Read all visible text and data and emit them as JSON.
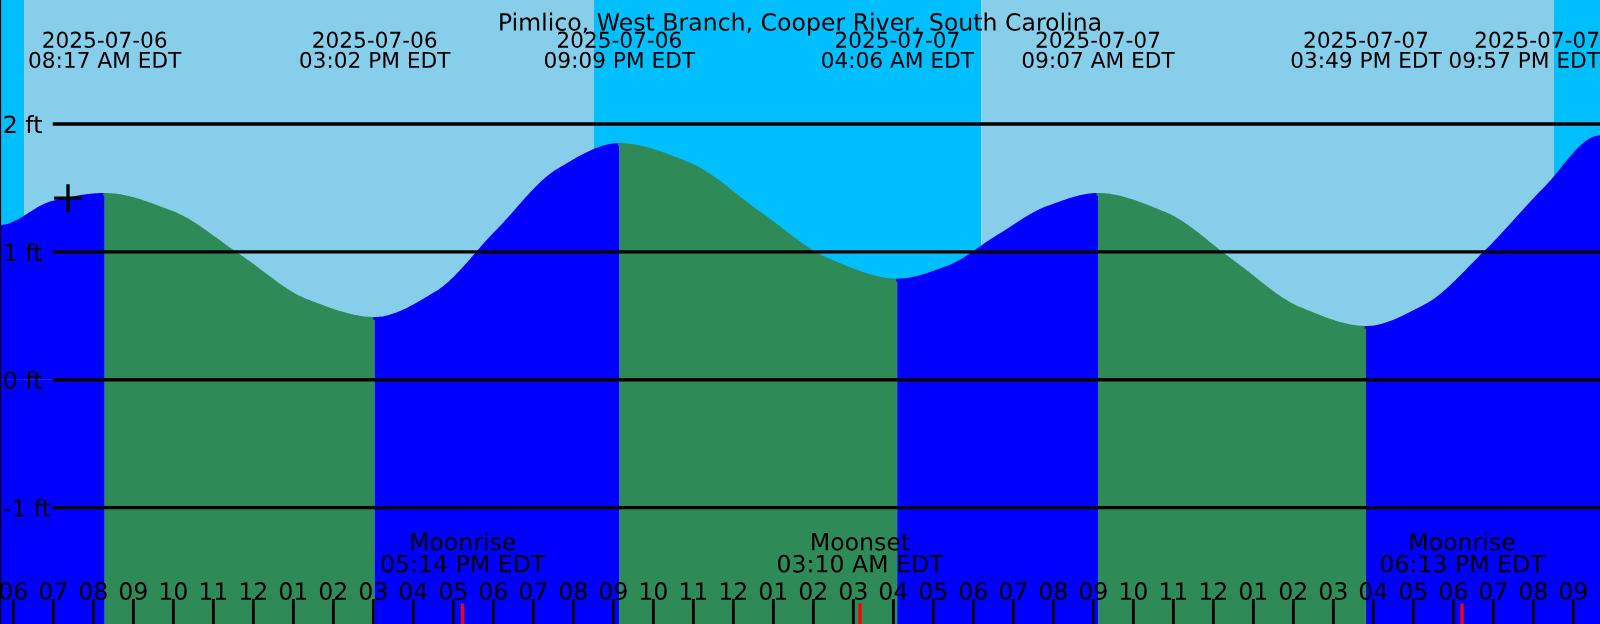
{
  "chart_data": {
    "type": "area",
    "title": "Pimlico, West Branch, Cooper River, South Carolina",
    "xlim": [
      "2025-07-06T05:40",
      "2025-07-07T21:40"
    ],
    "ylim": [
      -1.91,
      2.97
    ],
    "yticks": [
      {
        "value": -1,
        "label": "-1 ft"
      },
      {
        "value": 0,
        "label": "0 ft"
      },
      {
        "value": 1,
        "label": "1 ft"
      },
      {
        "value": 2,
        "label": "2 ft"
      }
    ],
    "xticks": [
      {
        "value": "2025-07-06T06:00",
        "label": "06"
      },
      {
        "value": "2025-07-06T07:00",
        "label": "07"
      },
      {
        "value": "2025-07-06T08:00",
        "label": "08"
      },
      {
        "value": "2025-07-06T09:00",
        "label": "09"
      },
      {
        "value": "2025-07-06T10:00",
        "label": "10"
      },
      {
        "value": "2025-07-06T11:00",
        "label": "11"
      },
      {
        "value": "2025-07-06T12:00",
        "label": "12"
      },
      {
        "value": "2025-07-06T13:00",
        "label": "01"
      },
      {
        "value": "2025-07-06T14:00",
        "label": "02"
      },
      {
        "value": "2025-07-06T15:00",
        "label": "03"
      },
      {
        "value": "2025-07-06T16:00",
        "label": "04"
      },
      {
        "value": "2025-07-06T17:00",
        "label": "05"
      },
      {
        "value": "2025-07-06T18:00",
        "label": "06"
      },
      {
        "value": "2025-07-06T19:00",
        "label": "07"
      },
      {
        "value": "2025-07-06T20:00",
        "label": "08"
      },
      {
        "value": "2025-07-06T21:00",
        "label": "09"
      },
      {
        "value": "2025-07-06T22:00",
        "label": "10"
      },
      {
        "value": "2025-07-06T23:00",
        "label": "11"
      },
      {
        "value": "2025-07-07T00:00",
        "label": "12"
      },
      {
        "value": "2025-07-07T01:00",
        "label": "01"
      },
      {
        "value": "2025-07-07T02:00",
        "label": "02"
      },
      {
        "value": "2025-07-07T03:00",
        "label": "03"
      },
      {
        "value": "2025-07-07T04:00",
        "label": "04"
      },
      {
        "value": "2025-07-07T05:00",
        "label": "05"
      },
      {
        "value": "2025-07-07T06:00",
        "label": "06"
      },
      {
        "value": "2025-07-07T07:00",
        "label": "07"
      },
      {
        "value": "2025-07-07T08:00",
        "label": "08"
      },
      {
        "value": "2025-07-07T09:00",
        "label": "09"
      },
      {
        "value": "2025-07-07T10:00",
        "label": "10"
      },
      {
        "value": "2025-07-07T11:00",
        "label": "11"
      },
      {
        "value": "2025-07-07T12:00",
        "label": "12"
      },
      {
        "value": "2025-07-07T13:00",
        "label": "01"
      },
      {
        "value": "2025-07-07T14:00",
        "label": "02"
      },
      {
        "value": "2025-07-07T15:00",
        "label": "03"
      },
      {
        "value": "2025-07-07T16:00",
        "label": "04"
      },
      {
        "value": "2025-07-07T17:00",
        "label": "05"
      },
      {
        "value": "2025-07-07T18:00",
        "label": "06"
      },
      {
        "value": "2025-07-07T19:00",
        "label": "07"
      },
      {
        "value": "2025-07-07T20:00",
        "label": "08"
      },
      {
        "value": "2025-07-07T21:00",
        "label": "09"
      }
    ],
    "grid": "y",
    "series": [
      {
        "color": "#0000ff",
        "x": [
          "2025-07-06T05:40",
          "2025-07-06T07:00",
          "2025-07-06T08:17"
        ],
        "values": [
          1.2,
          1.39,
          1.45
        ]
      },
      {
        "color": "#2e8b57",
        "x": [
          "2025-07-06T08:17",
          "2025-07-06T09:58",
          "2025-07-06T11:39",
          "2025-07-06T13:20",
          "2025-07-06T15:02"
        ],
        "values": [
          1.45,
          1.31,
          0.97,
          0.62,
          0.48
        ]
      },
      {
        "color": "#0000ff",
        "x": [
          "2025-07-06T15:02",
          "2025-07-06T16:34",
          "2025-07-06T18:05",
          "2025-07-06T19:37",
          "2025-07-06T21:09"
        ],
        "values": [
          0.48,
          0.68,
          1.16,
          1.64,
          1.84
        ]
      },
      {
        "color": "#2e8b57",
        "x": [
          "2025-07-06T21:09",
          "2025-07-06T22:53",
          "2025-07-07T00:38",
          "2025-07-07T02:22",
          "2025-07-07T04:06"
        ],
        "values": [
          1.84,
          1.69,
          1.31,
          0.94,
          0.78
        ]
      },
      {
        "color": "#0000ff",
        "x": [
          "2025-07-07T04:06",
          "2025-07-07T05:21",
          "2025-07-07T06:36",
          "2025-07-07T07:52",
          "2025-07-07T09:07"
        ],
        "values": [
          0.78,
          0.88,
          1.12,
          1.35,
          1.45
        ]
      },
      {
        "color": "#2e8b57",
        "x": [
          "2025-07-07T09:07",
          "2025-07-07T10:48",
          "2025-07-07T12:28",
          "2025-07-07T14:09",
          "2025-07-07T15:49"
        ],
        "values": [
          1.45,
          1.3,
          0.93,
          0.56,
          0.41
        ]
      },
      {
        "color": "#0000ff",
        "x": [
          "2025-07-07T15:49",
          "2025-07-07T17:18",
          "2025-07-07T18:48",
          "2025-07-07T20:18",
          "2025-07-07T21:40"
        ],
        "values": [
          0.41,
          0.58,
          1.0,
          1.5,
          1.9
        ]
      },
      {
        "type": "scatter",
        "color": "#000000",
        "marker": "cross",
        "x": [
          "2025-07-06T07:22"
        ],
        "values": [
          1.42
        ]
      }
    ],
    "bands": [
      {
        "axis": "x",
        "from": "2025-07-06T05:40",
        "to": "2025-07-06T06:16",
        "color": "#00bfff"
      },
      {
        "axis": "x",
        "from": "2025-07-06T06:16",
        "to": "2025-07-06T20:31",
        "color": "#87ceeb"
      },
      {
        "axis": "x",
        "from": "2025-07-06T20:31",
        "to": "2025-07-07T06:12",
        "color": "#00bfff"
      },
      {
        "axis": "x",
        "from": "2025-07-07T06:12",
        "to": "2025-07-07T20:31",
        "color": "#87ceeb"
      },
      {
        "axis": "x",
        "from": "2025-07-07T20:31",
        "to": "2025-07-07T21:40",
        "color": "#00bfff"
      },
      {
        "axis": "x",
        "from": "2025-07-06T05:40",
        "to": "2025-07-06T08:17",
        "color": "#0000ff"
      },
      {
        "axis": "x",
        "from": "2025-07-06T08:17",
        "to": "2025-07-06T15:02",
        "color": "#2e8b57"
      },
      {
        "axis": "x",
        "from": "2025-07-06T15:02",
        "to": "2025-07-06T21:09",
        "color": "#0000ff"
      },
      {
        "axis": "x",
        "from": "2025-07-06T21:09",
        "to": "2025-07-07T04:06",
        "color": "#2e8b57"
      },
      {
        "axis": "x",
        "from": "2025-07-07T04:06",
        "to": "2025-07-07T09:07",
        "color": "#0000ff"
      },
      {
        "axis": "x",
        "from": "2025-07-07T09:07",
        "to": "2025-07-07T15:49",
        "color": "#2e8b57"
      },
      {
        "axis": "x",
        "from": "2025-07-07T15:49",
        "to": "2025-07-07T21:40",
        "color": "#0000ff"
      }
    ],
    "ref_lines": [
      {
        "axis": "x",
        "value": "2025-07-06T17:14",
        "label": "Moonrise\n05:14 PM EDT",
        "color": "#ff0000"
      },
      {
        "axis": "x",
        "value": "2025-07-07T03:10",
        "label": "Moonset\n03:10 AM EDT",
        "color": "#ff0000"
      },
      {
        "axis": "x",
        "value": "2025-07-07T18:13",
        "label": "Moonrise\n06:13 PM EDT",
        "color": "#ff0000"
      }
    ],
    "annotations": [
      "2025-07-06\n08:17 AM EDT",
      "2025-07-06\n03:02 PM EDT",
      "2025-07-06\n09:09 PM EDT",
      "2025-07-07\n04:06 AM EDT",
      "2025-07-07\n09:07 AM EDT",
      "2025-07-07\n03:49 PM EDT",
      "2025-07-07\n09:57 PM EDT"
    ]
  }
}
